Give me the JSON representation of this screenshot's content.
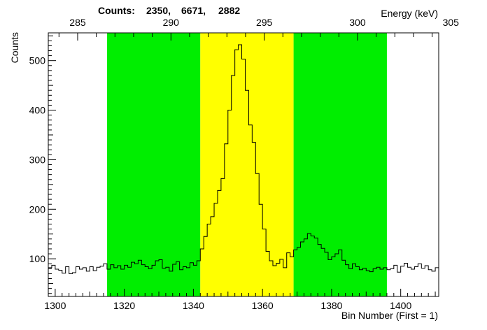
{
  "chart_data": {
    "type": "histogram",
    "counts_label": "Counts:",
    "counts_values": [
      "2350,",
      "6671,",
      "2882"
    ],
    "xlabel": "Bin Number (First = 1)",
    "ylabel": "Counts",
    "top_axis_label": "Energy (keV)",
    "xlim": [
      1298,
      1411
    ],
    "ylim": [
      24,
      556
    ],
    "x_ticks": [
      1300,
      1320,
      1340,
      1360,
      1380,
      1400
    ],
    "y_ticks": [
      100,
      200,
      300,
      400,
      500
    ],
    "top_ticks": [
      {
        "bin": 1306.5,
        "label": "285"
      },
      {
        "bin": 1333.5,
        "label": "290"
      },
      {
        "bin": 1360.5,
        "label": "295"
      },
      {
        "bin": 1387.5,
        "label": "300"
      },
      {
        "bin": 1414.5,
        "label": "305"
      }
    ],
    "regions": [
      {
        "name": "left background",
        "x0": 1315,
        "x1": 1342,
        "color": "#00ee00"
      },
      {
        "name": "peak",
        "x0": 1342,
        "x1": 1369,
        "color": "#ffff00"
      },
      {
        "name": "right background",
        "x0": 1369,
        "x1": 1396,
        "color": "#00ee00"
      }
    ],
    "bin_start": 1298,
    "bin_width": 1,
    "values": [
      82,
      87,
      79,
      77,
      71,
      84,
      70,
      72,
      84,
      79,
      82,
      75,
      84,
      76,
      83,
      85,
      90,
      79,
      88,
      82,
      86,
      79,
      87,
      83,
      93,
      90,
      97,
      88,
      84,
      80,
      87,
      96,
      98,
      81,
      83,
      75,
      89,
      94,
      78,
      84,
      82,
      92,
      87,
      96,
      120,
      145,
      170,
      185,
      212,
      238,
      262,
      332,
      400,
      470,
      522,
      532,
      503,
      440,
      370,
      335,
      272,
      210,
      160,
      115,
      96,
      86,
      91,
      99,
      82,
      112,
      104,
      118,
      123,
      134,
      140,
      151,
      146,
      142,
      129,
      121,
      113,
      98,
      104,
      110,
      118,
      97,
      88,
      80,
      90,
      84,
      78,
      81,
      76,
      74,
      80,
      83,
      79,
      82,
      78,
      80,
      87,
      73,
      85,
      91,
      83,
      79,
      84,
      90,
      81,
      86,
      78,
      75,
      82
    ]
  }
}
